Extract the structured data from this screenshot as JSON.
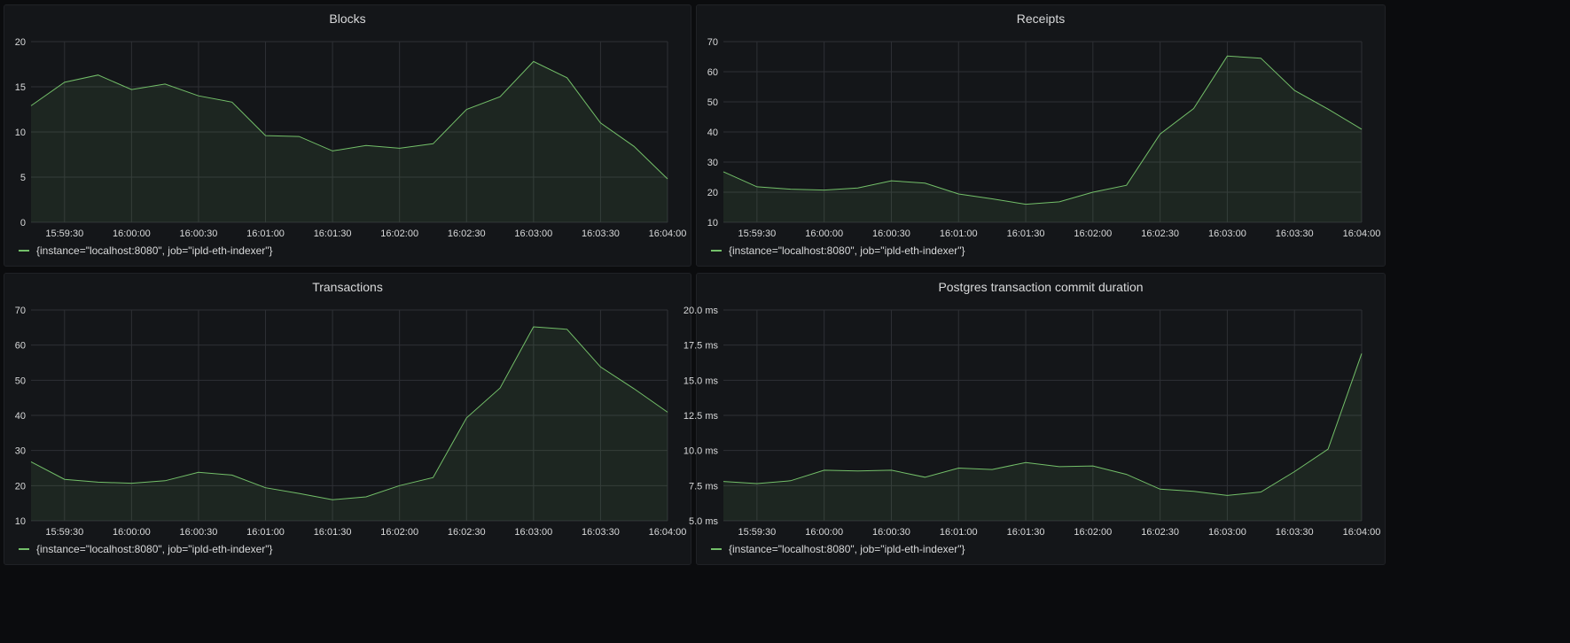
{
  "colors": {
    "series": "#73bf69",
    "fill": "rgba(115,191,105,0.10)",
    "grid": "#2e3035",
    "axis_text": "#d8d9da",
    "panel_bg": "#141619",
    "page_bg": "#0b0c0e"
  },
  "legend_icon": "line-swatch",
  "chart_data": [
    {
      "type": "area",
      "title": "Blocks",
      "x": [
        "15:59:15",
        "15:59:30",
        "15:59:45",
        "16:00:00",
        "16:00:15",
        "16:00:30",
        "16:00:45",
        "16:01:00",
        "16:01:15",
        "16:01:30",
        "16:01:45",
        "16:02:00",
        "16:02:15",
        "16:02:30",
        "16:02:45",
        "16:03:00",
        "16:03:15",
        "16:03:30",
        "16:03:45",
        "16:04:00"
      ],
      "x_ticks": [
        "15:59:30",
        "16:00:00",
        "16:00:30",
        "16:01:00",
        "16:01:30",
        "16:02:00",
        "16:02:30",
        "16:03:00",
        "16:03:30",
        "16:04:00"
      ],
      "y_ticks": [
        "0",
        "5",
        "10",
        "15",
        "20"
      ],
      "ylim": [
        0,
        20
      ],
      "grid": true,
      "legend_position": "bottom-left",
      "series": [
        {
          "name": "{instance=\"localhost:8080\", job=\"ipld-eth-indexer\"}",
          "values": [
            12.9,
            15.5,
            16.3,
            14.7,
            15.3,
            14.0,
            13.3,
            9.6,
            9.5,
            7.9,
            8.5,
            8.2,
            8.7,
            12.5,
            13.9,
            17.8,
            16.0,
            11.0,
            8.4,
            4.8
          ]
        }
      ]
    },
    {
      "type": "area",
      "title": "Receipts",
      "x": [
        "15:59:15",
        "15:59:30",
        "15:59:45",
        "16:00:00",
        "16:00:15",
        "16:00:30",
        "16:00:45",
        "16:01:00",
        "16:01:15",
        "16:01:30",
        "16:01:45",
        "16:02:00",
        "16:02:15",
        "16:02:30",
        "16:02:45",
        "16:03:00",
        "16:03:15",
        "16:03:30",
        "16:03:45",
        "16:04:00"
      ],
      "x_ticks": [
        "15:59:30",
        "16:00:00",
        "16:00:30",
        "16:01:00",
        "16:01:30",
        "16:02:00",
        "16:02:30",
        "16:03:00",
        "16:03:30",
        "16:04:00"
      ],
      "y_ticks": [
        "10",
        "20",
        "30",
        "40",
        "50",
        "60",
        "70"
      ],
      "ylim": [
        10,
        70
      ],
      "grid": true,
      "legend_position": "bottom-left",
      "series": [
        {
          "name": "{instance=\"localhost:8080\", job=\"ipld-eth-indexer\"}",
          "values": [
            26.8,
            21.8,
            21.0,
            20.7,
            21.4,
            23.8,
            23.0,
            19.4,
            17.8,
            16.0,
            16.8,
            20.0,
            22.3,
            39.3,
            47.8,
            65.2,
            64.5,
            53.8,
            47.6,
            40.9
          ]
        }
      ]
    },
    {
      "type": "area",
      "title": "Transactions",
      "x": [
        "15:59:15",
        "15:59:30",
        "15:59:45",
        "16:00:00",
        "16:00:15",
        "16:00:30",
        "16:00:45",
        "16:01:00",
        "16:01:15",
        "16:01:30",
        "16:01:45",
        "16:02:00",
        "16:02:15",
        "16:02:30",
        "16:02:45",
        "16:03:00",
        "16:03:15",
        "16:03:30",
        "16:03:45",
        "16:04:00"
      ],
      "x_ticks": [
        "15:59:30",
        "16:00:00",
        "16:00:30",
        "16:01:00",
        "16:01:30",
        "16:02:00",
        "16:02:30",
        "16:03:00",
        "16:03:30",
        "16:04:00"
      ],
      "y_ticks": [
        "10",
        "20",
        "30",
        "40",
        "50",
        "60",
        "70"
      ],
      "ylim": [
        10,
        70
      ],
      "grid": true,
      "legend_position": "bottom-left",
      "series": [
        {
          "name": "{instance=\"localhost:8080\", job=\"ipld-eth-indexer\"}",
          "values": [
            26.8,
            21.8,
            21.0,
            20.7,
            21.4,
            23.8,
            23.0,
            19.4,
            17.8,
            16.0,
            16.8,
            20.0,
            22.3,
            39.3,
            47.8,
            65.2,
            64.5,
            53.8,
            47.6,
            40.9
          ]
        }
      ]
    },
    {
      "type": "area",
      "title": "Postgres transaction commit duration",
      "x": [
        "15:59:15",
        "15:59:30",
        "15:59:45",
        "16:00:00",
        "16:00:15",
        "16:00:30",
        "16:00:45",
        "16:01:00",
        "16:01:15",
        "16:01:30",
        "16:01:45",
        "16:02:00",
        "16:02:15",
        "16:02:30",
        "16:02:45",
        "16:03:00",
        "16:03:15",
        "16:03:30",
        "16:03:45",
        "16:04:00"
      ],
      "x_ticks": [
        "15:59:30",
        "16:00:00",
        "16:00:30",
        "16:01:00",
        "16:01:30",
        "16:02:00",
        "16:02:30",
        "16:03:00",
        "16:03:30",
        "16:04:00"
      ],
      "y_ticks": [
        "5.0 ms",
        "7.5 ms",
        "10.0 ms",
        "12.5 ms",
        "15.0 ms",
        "17.5 ms",
        "20.0 ms"
      ],
      "ylim": [
        5,
        20
      ],
      "unit": "ms",
      "grid": true,
      "legend_position": "bottom-left",
      "series": [
        {
          "name": "{instance=\"localhost:8080\", job=\"ipld-eth-indexer\"}",
          "values": [
            7.8,
            7.65,
            7.85,
            8.6,
            8.55,
            8.6,
            8.1,
            8.75,
            8.65,
            9.15,
            8.85,
            8.9,
            8.3,
            7.25,
            7.1,
            6.8,
            7.05,
            8.5,
            10.1,
            16.9
          ]
        }
      ]
    }
  ]
}
